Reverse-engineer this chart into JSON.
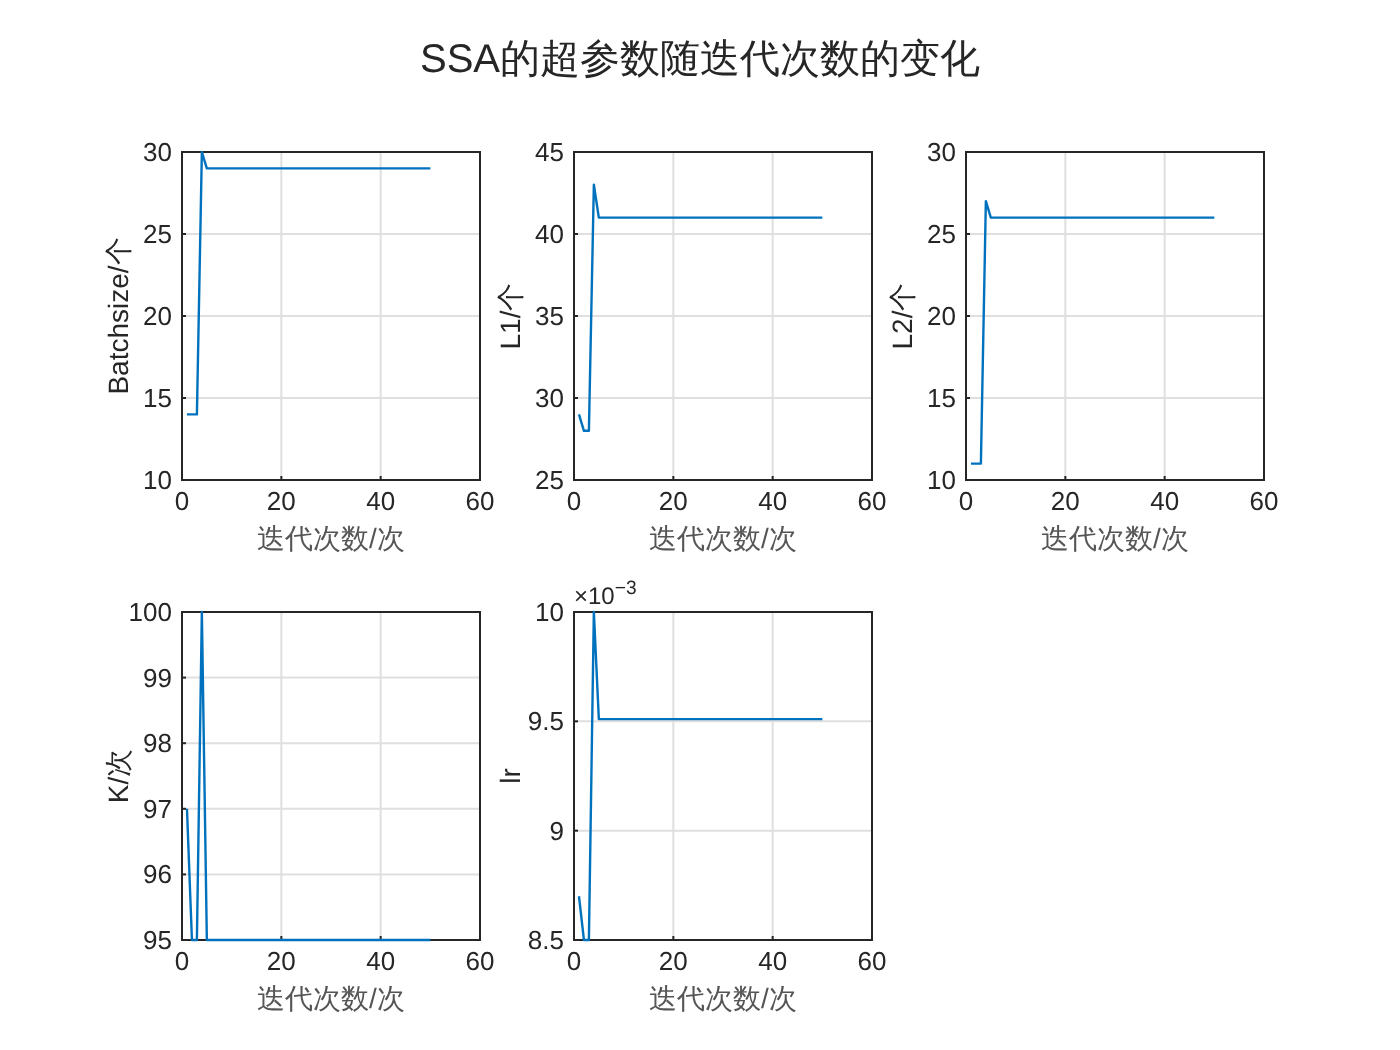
{
  "chart_data": [
    {
      "type": "other",
      "title": "SSA的超参数随迭代次数的变化"
    },
    {
      "type": "line",
      "xlabel": "迭代次数/次",
      "ylabel": "Batchsize/个",
      "x": [
        1,
        2,
        3,
        4,
        5,
        50
      ],
      "series": [
        {
          "color": "#0072bd",
          "values": [
            14,
            14,
            14,
            30,
            29,
            29
          ]
        }
      ],
      "xlim": [
        0,
        60
      ],
      "ylim": [
        10,
        30
      ],
      "xticks": [
        0,
        20,
        40,
        60
      ],
      "yticks": [
        10,
        15,
        20,
        25,
        30
      ],
      "grid": true
    },
    {
      "type": "line",
      "xlabel": "迭代次数/次",
      "ylabel": "L1/个",
      "x": [
        1,
        2,
        3,
        4,
        5,
        50
      ],
      "series": [
        {
          "color": "#0072bd",
          "values": [
            29,
            28,
            28,
            43,
            41,
            41
          ]
        }
      ],
      "xlim": [
        0,
        60
      ],
      "ylim": [
        25,
        45
      ],
      "xticks": [
        0,
        20,
        40,
        60
      ],
      "yticks": [
        25,
        30,
        35,
        40,
        45
      ],
      "grid": true
    },
    {
      "type": "line",
      "xlabel": "迭代次数/次",
      "ylabel": "L2/个",
      "x": [
        1,
        2,
        3,
        4,
        5,
        50
      ],
      "series": [
        {
          "color": "#0072bd",
          "values": [
            11,
            11,
            11,
            27,
            26,
            26
          ]
        }
      ],
      "xlim": [
        0,
        60
      ],
      "ylim": [
        10,
        30
      ],
      "xticks": [
        0,
        20,
        40,
        60
      ],
      "yticks": [
        10,
        15,
        20,
        25,
        30
      ],
      "grid": true
    },
    {
      "type": "line",
      "xlabel": "迭代次数/次",
      "ylabel": "K/次",
      "x": [
        1,
        2,
        3,
        4,
        5,
        50
      ],
      "series": [
        {
          "color": "#0072bd",
          "values": [
            97,
            95,
            95,
            100,
            95,
            95
          ]
        }
      ],
      "xlim": [
        0,
        60
      ],
      "ylim": [
        95,
        100
      ],
      "xticks": [
        0,
        20,
        40,
        60
      ],
      "yticks": [
        95,
        96,
        97,
        98,
        99,
        100
      ],
      "grid": true
    },
    {
      "type": "line",
      "xlabel": "迭代次数/次",
      "ylabel": "lr",
      "annotations": [
        "×10$^{−3}$"
      ],
      "x": [
        1,
        2,
        3,
        4,
        5,
        50
      ],
      "series": [
        {
          "color": "#0072bd",
          "values": [
            8.7,
            8.5,
            8.5,
            10,
            9.51,
            9.51
          ]
        }
      ],
      "xlim": [
        0,
        60
      ],
      "ylim": [
        8.5,
        10
      ],
      "xticks": [
        0,
        20,
        40,
        60
      ],
      "yticks": [
        8.5,
        9,
        9.5,
        10
      ],
      "grid": true
    }
  ]
}
